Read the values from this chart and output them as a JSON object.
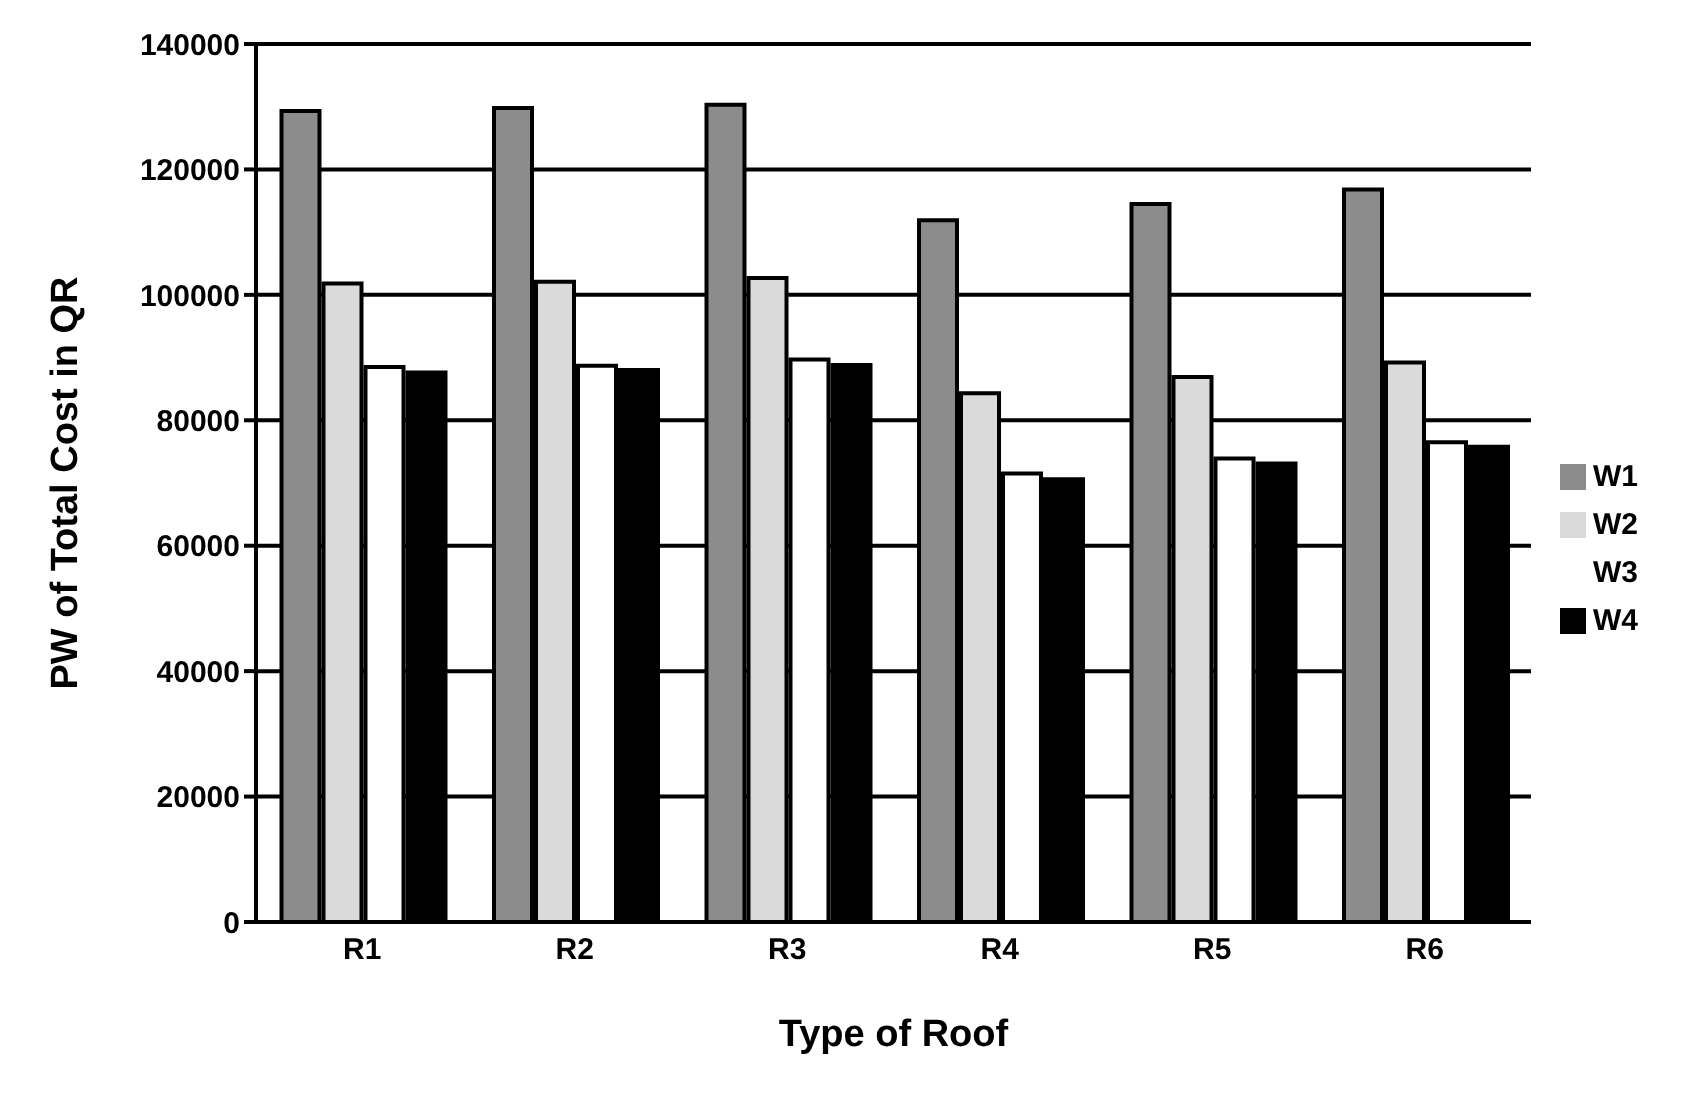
{
  "chart_data": {
    "type": "bar",
    "xlabel": "Type of Roof",
    "ylabel": "PW of Total Cost in QR",
    "categories": [
      "R1",
      "R2",
      "R3",
      "R4",
      "R5",
      "R6"
    ],
    "series": [
      {
        "name": "W1",
        "color": "#8c8c8c",
        "values": [
          129300,
          129800,
          130300,
          111900,
          114500,
          116800
        ]
      },
      {
        "name": "W2",
        "color": "#dadada",
        "values": [
          101800,
          102100,
          102700,
          84300,
          86900,
          89200
        ]
      },
      {
        "name": "W3",
        "color": "#ffffff",
        "values": [
          88500,
          88700,
          89700,
          71500,
          73900,
          76500
        ]
      },
      {
        "name": "W4",
        "color": "#000000",
        "values": [
          87600,
          88000,
          88800,
          70600,
          73100,
          75800
        ]
      }
    ],
    "ylim": [
      0,
      140000
    ],
    "yticks": [
      0,
      20000,
      40000,
      60000,
      80000,
      100000,
      120000,
      140000
    ],
    "grid": "y",
    "legend": "right"
  }
}
